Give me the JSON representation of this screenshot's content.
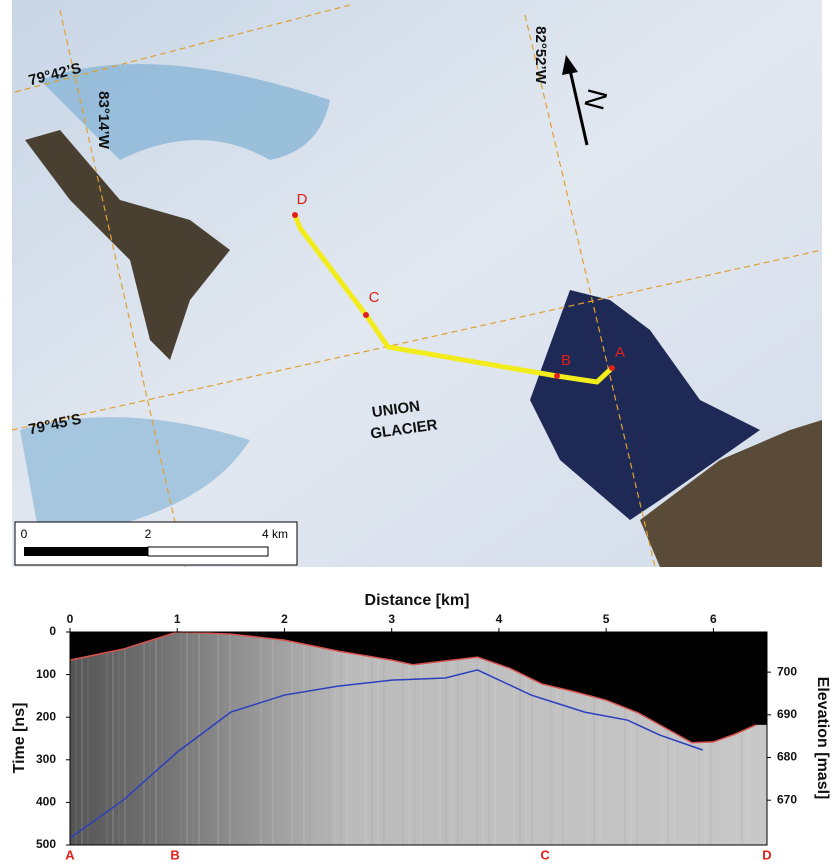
{
  "map": {
    "graticule_labels": [
      "79°42’S",
      "83°14’W",
      "82°52’W",
      "79°45’S"
    ],
    "north": "N",
    "points": [
      "D",
      "C",
      "B",
      "A"
    ],
    "place_label": [
      "UNION",
      "GLACIER"
    ],
    "scale_labels": [
      "0",
      "2",
      "4 km"
    ]
  },
  "chart_data": {
    "type": "line",
    "xlabel": "Distance [km]",
    "ylabel": "Time [ns]",
    "y2label": "Elevation [masl]",
    "xlim": [
      0,
      6.5
    ],
    "xticks": [
      0,
      1,
      2,
      3,
      4,
      5,
      6
    ],
    "ylim": [
      0,
      500
    ],
    "yticks": [
      0,
      100,
      200,
      300,
      400,
      500
    ],
    "y2lim": [
      659.5,
      709.4
    ],
    "y2ticks": [
      700,
      690,
      680,
      670
    ],
    "series": [
      {
        "color": "#d9534f",
        "x": [
          0,
          0.5,
          1,
          1.5,
          2,
          2.5,
          3,
          3.2,
          3.8,
          4.1,
          4.4,
          4.7,
          5,
          5.3,
          5.5,
          5.8,
          6,
          6.2,
          6.4
        ],
        "values": [
          66,
          40,
          0,
          5,
          19,
          45,
          66,
          77,
          59,
          85,
          122,
          140,
          160,
          190,
          218,
          260,
          258,
          240,
          218
        ]
      },
      {
        "color": "#2b3fbf",
        "x": [
          0,
          0.5,
          1,
          1.5,
          2,
          2.5,
          3,
          3.5,
          3.8,
          4.3,
          4.5,
          4.8,
          5.2,
          5.5,
          5.9
        ],
        "values": [
          484,
          394,
          282,
          188,
          148,
          127,
          113,
          108,
          89,
          148,
          164,
          188,
          207,
          242,
          277
        ]
      }
    ],
    "markers": [
      {
        "label": "A",
        "x": 0
      },
      {
        "label": "B",
        "x": 0.98
      },
      {
        "label": "C",
        "x": 4.43
      },
      {
        "label": "D",
        "x": 6.5
      }
    ]
  }
}
